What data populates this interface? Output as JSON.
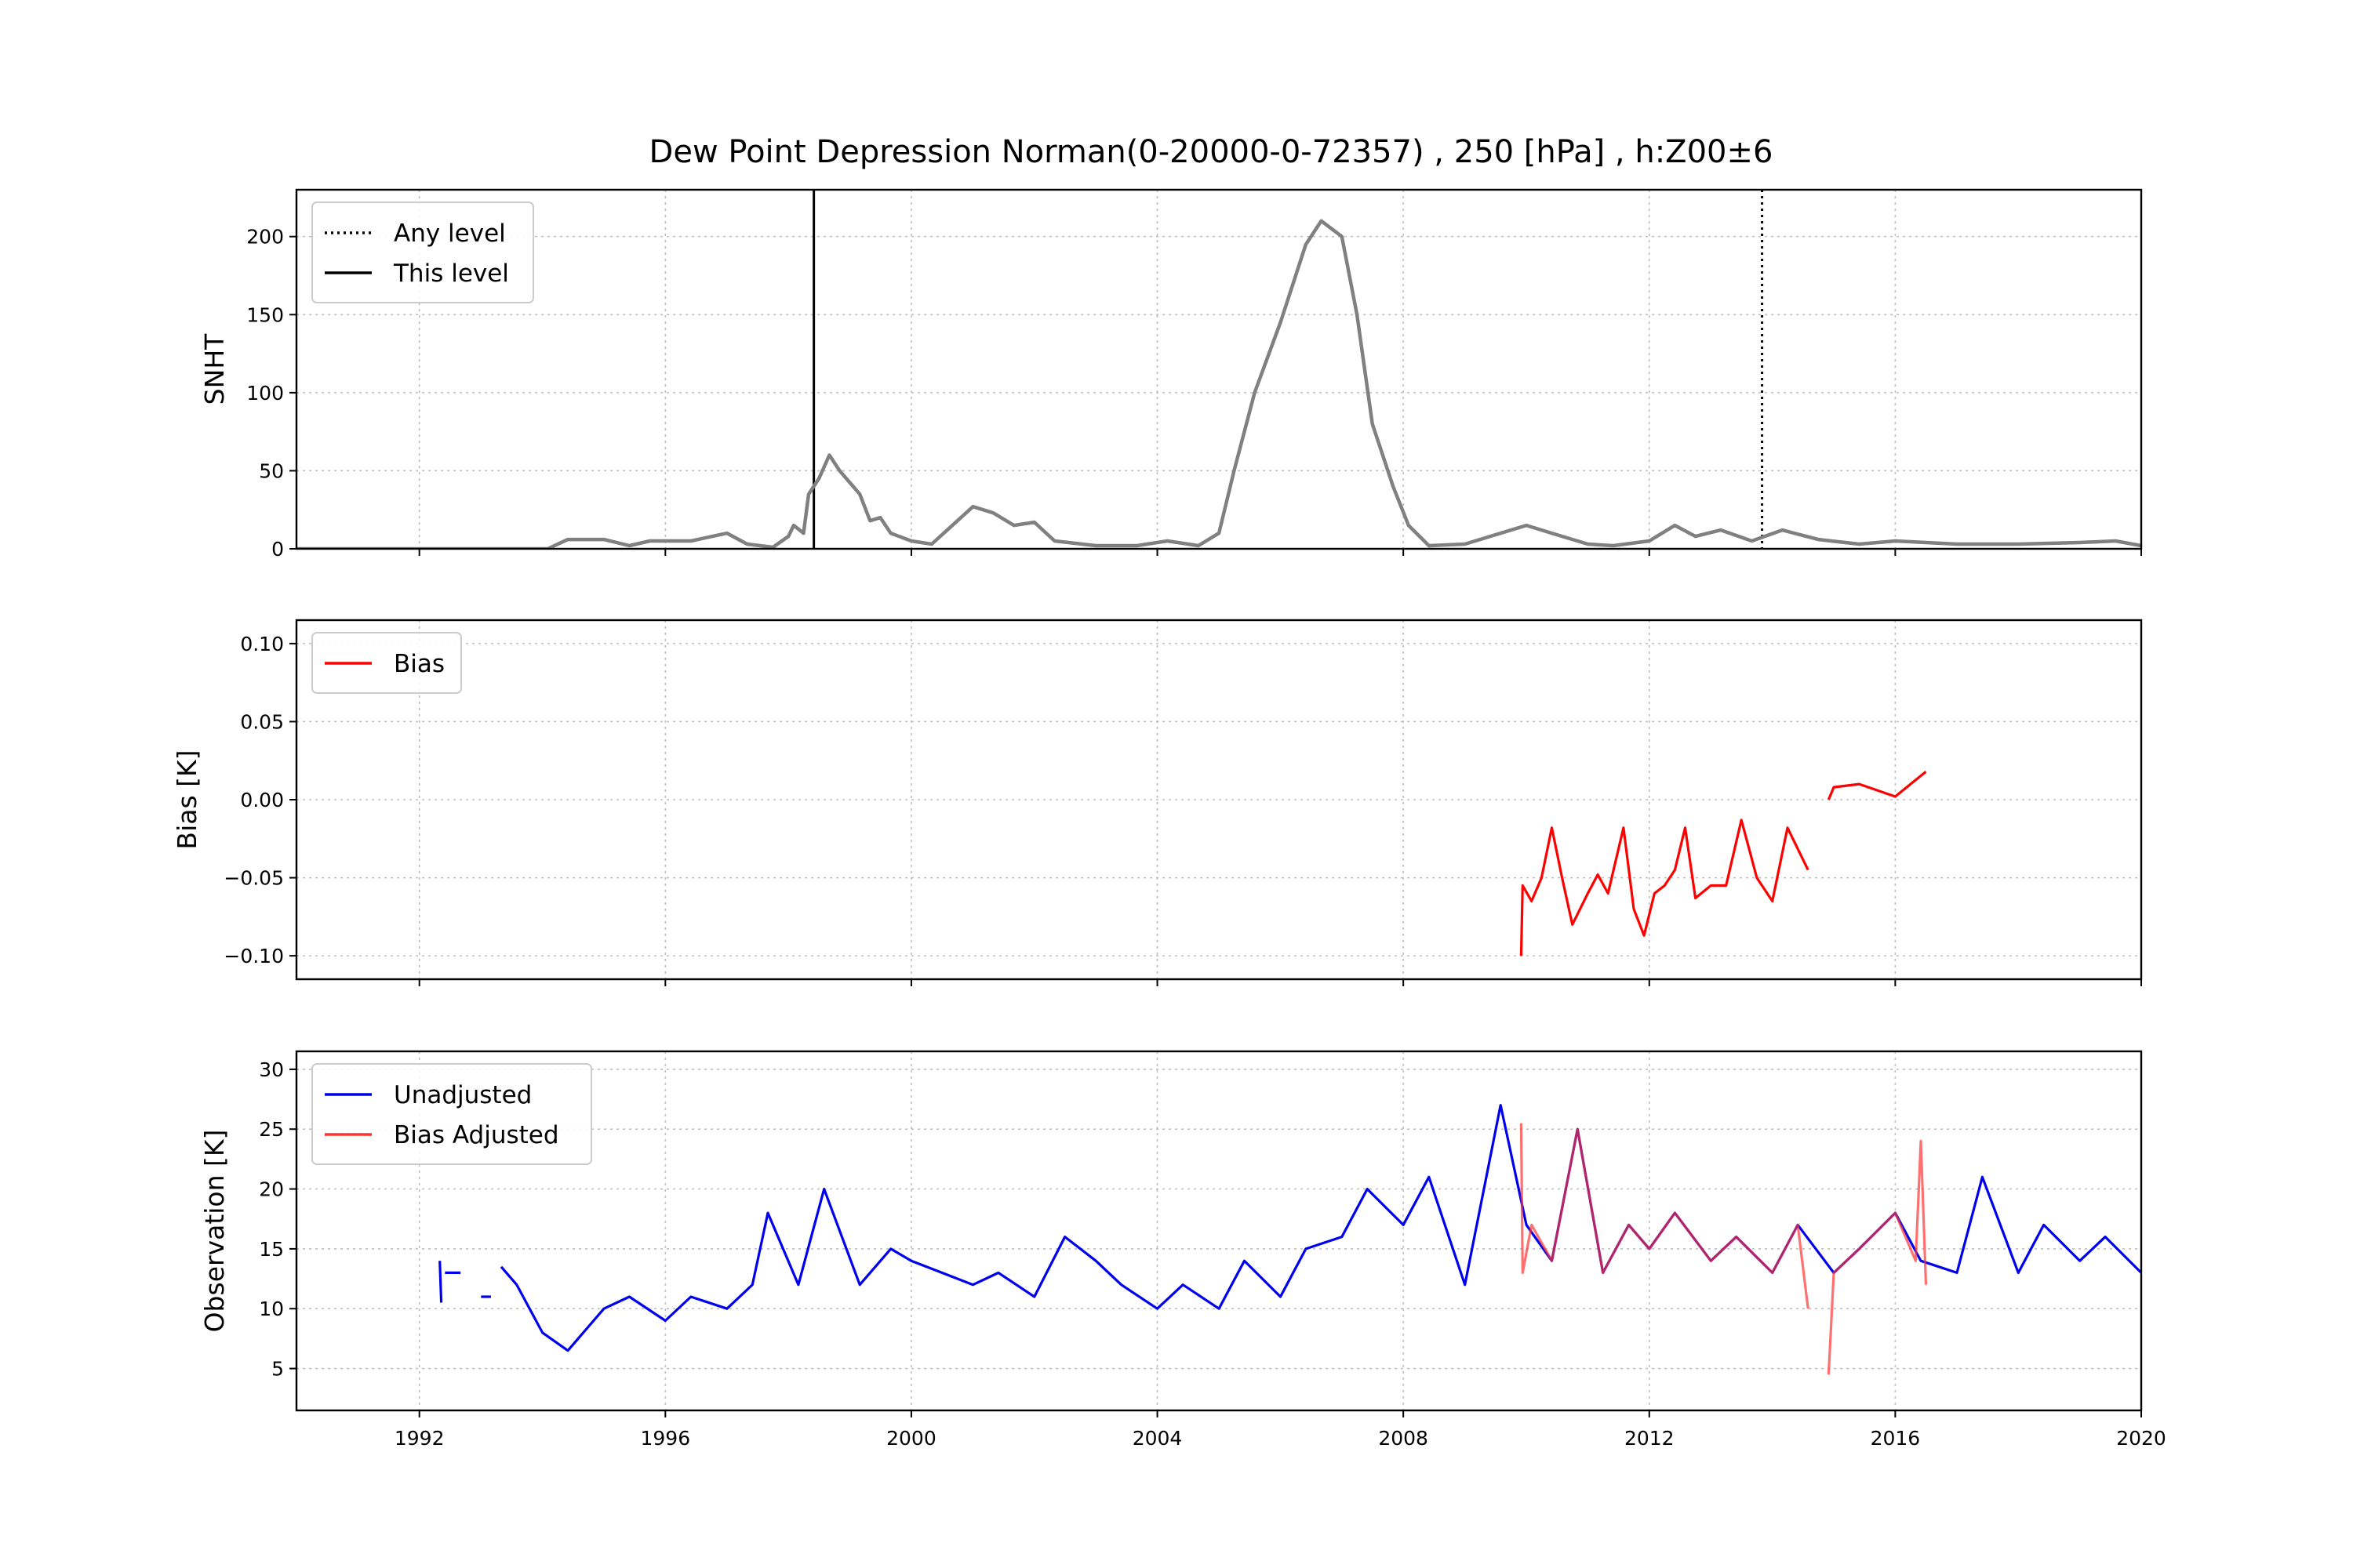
{
  "chart_data": {
    "title": "Dew Point Depression Norman(0-20000-0-72357) , 250 [hPa] , h:Z00±6",
    "x_axis": {
      "type": "date",
      "range": [
        "1990-01-01",
        "2020-01-01"
      ],
      "ticks": [
        "1992",
        "1996",
        "2000",
        "2004",
        "2008",
        "2012",
        "2016",
        "2020"
      ],
      "grid": true
    },
    "panels": [
      {
        "type": "line",
        "ylabel": "SNHT",
        "ylim": [
          0,
          230
        ],
        "yticks": [
          0,
          50,
          100,
          150,
          200
        ],
        "tick_labels": [
          "0",
          "50",
          "100",
          "150",
          "200"
        ],
        "grid": true,
        "legend": {
          "placement": "upper-left",
          "entries": [
            {
              "name": "Any level",
              "style": "dotted",
              "color": "#000000"
            },
            {
              "name": "This level",
              "style": "solid",
              "color": "#000000"
            }
          ]
        },
        "vlines": [
          {
            "legend": "This level",
            "x": "1998-06-01",
            "style": "solid"
          },
          {
            "legend": "Any level",
            "x": "2013-11-01",
            "style": "dotted"
          }
        ],
        "series": [
          {
            "color": "#808080",
            "points": [
              [
                "1990-01-01",
                0
              ],
              [
                "1994-02-01",
                0
              ],
              [
                "1994-06-01",
                6
              ],
              [
                "1995-01-01",
                6
              ],
              [
                "1995-06-01",
                2
              ],
              [
                "1995-10-01",
                5
              ],
              [
                "1996-06-01",
                5
              ],
              [
                "1997-01-01",
                10
              ],
              [
                "1997-05-01",
                3
              ],
              [
                "1997-10-01",
                1
              ],
              [
                "1998-01-01",
                8
              ],
              [
                "1998-02-01",
                15
              ],
              [
                "1998-04-01",
                10
              ],
              [
                "1998-05-01",
                35
              ],
              [
                "1998-07-01",
                45
              ],
              [
                "1998-09-01",
                60
              ],
              [
                "1998-11-01",
                50
              ],
              [
                "1999-03-01",
                35
              ],
              [
                "1999-05-01",
                18
              ],
              [
                "1999-07-01",
                20
              ],
              [
                "1999-09-01",
                10
              ],
              [
                "2000-01-01",
                5
              ],
              [
                "2000-05-01",
                3
              ],
              [
                "2000-09-01",
                15
              ],
              [
                "2001-01-01",
                27
              ],
              [
                "2001-05-01",
                23
              ],
              [
                "2001-09-01",
                15
              ],
              [
                "2002-01-01",
                17
              ],
              [
                "2002-05-01",
                5
              ],
              [
                "2003-01-01",
                2
              ],
              [
                "2003-09-01",
                2
              ],
              [
                "2004-03-01",
                5
              ],
              [
                "2004-09-01",
                2
              ],
              [
                "2005-01-01",
                10
              ],
              [
                "2005-04-01",
                50
              ],
              [
                "2005-08-01",
                100
              ],
              [
                "2006-01-01",
                145
              ],
              [
                "2006-06-01",
                195
              ],
              [
                "2006-09-01",
                210
              ],
              [
                "2007-01-01",
                200
              ],
              [
                "2007-04-01",
                150
              ],
              [
                "2007-07-01",
                80
              ],
              [
                "2007-11-01",
                40
              ],
              [
                "2008-02-01",
                15
              ],
              [
                "2008-06-01",
                2
              ],
              [
                "2009-01-01",
                3
              ],
              [
                "2009-06-01",
                8
              ],
              [
                "2010-01-01",
                15
              ],
              [
                "2010-06-01",
                10
              ],
              [
                "2011-01-01",
                3
              ],
              [
                "2011-06-01",
                2
              ],
              [
                "2012-01-01",
                5
              ],
              [
                "2012-06-01",
                15
              ],
              [
                "2012-10-01",
                8
              ],
              [
                "2013-03-01",
                12
              ],
              [
                "2013-09-01",
                5
              ],
              [
                "2014-03-01",
                12
              ],
              [
                "2014-10-01",
                6
              ],
              [
                "2015-06-01",
                3
              ],
              [
                "2016-01-01",
                5
              ],
              [
                "2017-01-01",
                3
              ],
              [
                "2018-01-01",
                3
              ],
              [
                "2019-01-01",
                4
              ],
              [
                "2019-08-01",
                5
              ],
              [
                "2020-01-01",
                2
              ]
            ]
          }
        ]
      },
      {
        "type": "line",
        "ylabel": "Bias [K]",
        "ylim": [
          -0.115,
          0.115
        ],
        "yticks": [
          -0.1,
          -0.05,
          0.0,
          0.05,
          0.1
        ],
        "tick_labels": [
          "−0.10",
          "−0.05",
          "0.00",
          "0.05",
          "0.10"
        ],
        "grid": true,
        "legend": {
          "placement": "upper-left",
          "entries": [
            {
              "name": "Bias",
              "style": "solid",
              "color": "#ff0000"
            }
          ]
        },
        "series": [
          {
            "legend": "Bias",
            "color": "#ff0000",
            "segments": [
              [
                [
                  "2009-12-01",
                  -0.1
                ],
                [
                  "2009-12-10",
                  -0.055
                ],
                [
                  "2010-02-01",
                  -0.065
                ],
                [
                  "2010-04-01",
                  -0.05
                ],
                [
                  "2010-06-01",
                  -0.018
                ],
                [
                  "2010-08-01",
                  -0.05
                ],
                [
                  "2010-10-01",
                  -0.08
                ],
                [
                  "2011-01-01",
                  -0.06
                ],
                [
                  "2011-03-01",
                  -0.048
                ],
                [
                  "2011-05-01",
                  -0.06
                ],
                [
                  "2011-08-01",
                  -0.018
                ],
                [
                  "2011-10-01",
                  -0.07
                ],
                [
                  "2011-12-01",
                  -0.087
                ],
                [
                  "2012-02-01",
                  -0.06
                ],
                [
                  "2012-04-01",
                  -0.055
                ],
                [
                  "2012-06-01",
                  -0.045
                ],
                [
                  "2012-08-01",
                  -0.018
                ],
                [
                  "2012-10-01",
                  -0.063
                ],
                [
                  "2013-01-01",
                  -0.055
                ],
                [
                  "2013-04-01",
                  -0.055
                ],
                [
                  "2013-07-01",
                  -0.013
                ],
                [
                  "2013-10-01",
                  -0.05
                ],
                [
                  "2014-01-01",
                  -0.065
                ],
                [
                  "2014-04-01",
                  -0.018
                ],
                [
                  "2014-08-01",
                  -0.045
                ]
              ],
              [
                [
                  "2014-12-01",
                  0.0
                ],
                [
                  "2015-01-01",
                  0.008
                ],
                [
                  "2015-06-01",
                  0.01
                ],
                [
                  "2016-01-01",
                  0.002
                ],
                [
                  "2016-04-01",
                  0.01
                ],
                [
                  "2016-07-01",
                  0.018
                ]
              ]
            ]
          }
        ]
      },
      {
        "type": "line",
        "ylabel": "Observation [K]",
        "ylim": [
          1.5,
          31.5
        ],
        "yticks": [
          5,
          10,
          15,
          20,
          25,
          30
        ],
        "tick_labels": [
          "5",
          "10",
          "15",
          "20",
          "25",
          "30"
        ],
        "grid": true,
        "legend": {
          "placement": "upper-left",
          "entries": [
            {
              "name": "Unadjusted",
              "style": "solid",
              "color": "#0000ee"
            },
            {
              "name": "Bias Adjusted",
              "style": "solid",
              "color": "#ff3333"
            }
          ]
        },
        "series": [
          {
            "legend": "Unadjusted",
            "color": "#0000ee",
            "segments": [
              [
                [
                  "1992-05-01",
                  14
                ],
                [
                  "1992-05-10",
                  10.5
                ]
              ],
              [
                [
                  "1992-06-01",
                  13
                ],
                [
                  "1992-09-01",
                  13
                ]
              ],
              [
                [
                  "1993-01-01",
                  11
                ],
                [
                  "1993-03-01",
                  11
                ]
              ],
              [
                [
                  "1993-05-01",
                  13.5
                ],
                [
                  "1993-08-01",
                  12
                ],
                [
                  "1994-01-01",
                  8
                ],
                [
                  "1994-06-01",
                  6.5
                ],
                [
                  "1995-01-01",
                  10
                ],
                [
                  "1995-06-01",
                  11
                ],
                [
                  "1996-01-01",
                  9
                ],
                [
                  "1996-06-01",
                  11
                ],
                [
                  "1997-01-01",
                  10
                ],
                [
                  "1997-06-01",
                  12
                ],
                [
                  "1997-09-01",
                  18
                ],
                [
                  "1998-03-01",
                  12
                ],
                [
                  "1998-08-01",
                  20
                ],
                [
                  "1999-03-01",
                  12
                ],
                [
                  "1999-09-01",
                  15
                ],
                [
                  "2000-01-01",
                  14
                ],
                [
                  "2000-07-01",
                  13
                ],
                [
                  "2001-01-01",
                  12
                ],
                [
                  "2001-06-01",
                  13
                ],
                [
                  "2002-01-01",
                  11
                ],
                [
                  "2002-07-01",
                  16
                ],
                [
                  "2003-01-01",
                  14
                ],
                [
                  "2003-06-01",
                  12
                ],
                [
                  "2004-01-01",
                  10
                ],
                [
                  "2004-06-01",
                  12
                ],
                [
                  "2005-01-01",
                  10
                ],
                [
                  "2005-06-01",
                  14
                ],
                [
                  "2006-01-01",
                  11
                ],
                [
                  "2006-06-01",
                  15
                ],
                [
                  "2007-01-01",
                  16
                ],
                [
                  "2007-06-01",
                  20
                ],
                [
                  "2008-01-01",
                  17
                ],
                [
                  "2008-06-01",
                  21
                ],
                [
                  "2009-01-01",
                  12
                ],
                [
                  "2009-08-01",
                  27
                ],
                [
                  "2010-01-01",
                  17
                ],
                [
                  "2010-06-01",
                  14
                ],
                [
                  "2010-11-01",
                  25
                ],
                [
                  "2011-04-01",
                  13
                ],
                [
                  "2011-09-01",
                  17
                ],
                [
                  "2012-01-01",
                  15
                ],
                [
                  "2012-06-01",
                  18
                ],
                [
                  "2013-01-01",
                  14
                ],
                [
                  "2013-06-01",
                  16
                ],
                [
                  "2014-01-01",
                  13
                ],
                [
                  "2014-06-01",
                  17
                ],
                [
                  "2015-01-01",
                  13
                ],
                [
                  "2015-06-01",
                  15
                ],
                [
                  "2016-01-01",
                  18
                ],
                [
                  "2016-06-01",
                  14
                ],
                [
                  "2017-01-01",
                  13
                ],
                [
                  "2017-06-01",
                  21
                ],
                [
                  "2018-01-01",
                  13
                ],
                [
                  "2018-06-01",
                  17
                ],
                [
                  "2019-01-01",
                  14
                ],
                [
                  "2019-06-01",
                  16
                ],
                [
                  "2020-01-01",
                  13
                ]
              ]
            ]
          },
          {
            "legend": "Bias Adjusted",
            "color": "#ff3333",
            "alpha": 0.7,
            "segments": [
              [
                [
                  "2009-12-01",
                  25.5
                ],
                [
                  "2009-12-10",
                  13
                ],
                [
                  "2010-02-01",
                  17
                ],
                [
                  "2010-06-01",
                  14
                ],
                [
                  "2010-11-01",
                  25
                ],
                [
                  "2011-04-01",
                  13
                ],
                [
                  "2011-09-01",
                  17
                ],
                [
                  "2012-01-01",
                  15
                ],
                [
                  "2012-06-01",
                  18
                ],
                [
                  "2013-01-01",
                  14
                ],
                [
                  "2013-06-01",
                  16
                ],
                [
                  "2014-01-01",
                  13
                ],
                [
                  "2014-06-01",
                  17
                ],
                [
                  "2014-08-01",
                  10
                ]
              ],
              [
                [
                  "2014-12-01",
                  4.5
                ],
                [
                  "2015-01-01",
                  13
                ],
                [
                  "2015-06-01",
                  15
                ],
                [
                  "2016-01-01",
                  18
                ],
                [
                  "2016-05-01",
                  14
                ],
                [
                  "2016-06-01",
                  24
                ],
                [
                  "2016-07-01",
                  12
                ]
              ]
            ]
          }
        ]
      }
    ]
  }
}
